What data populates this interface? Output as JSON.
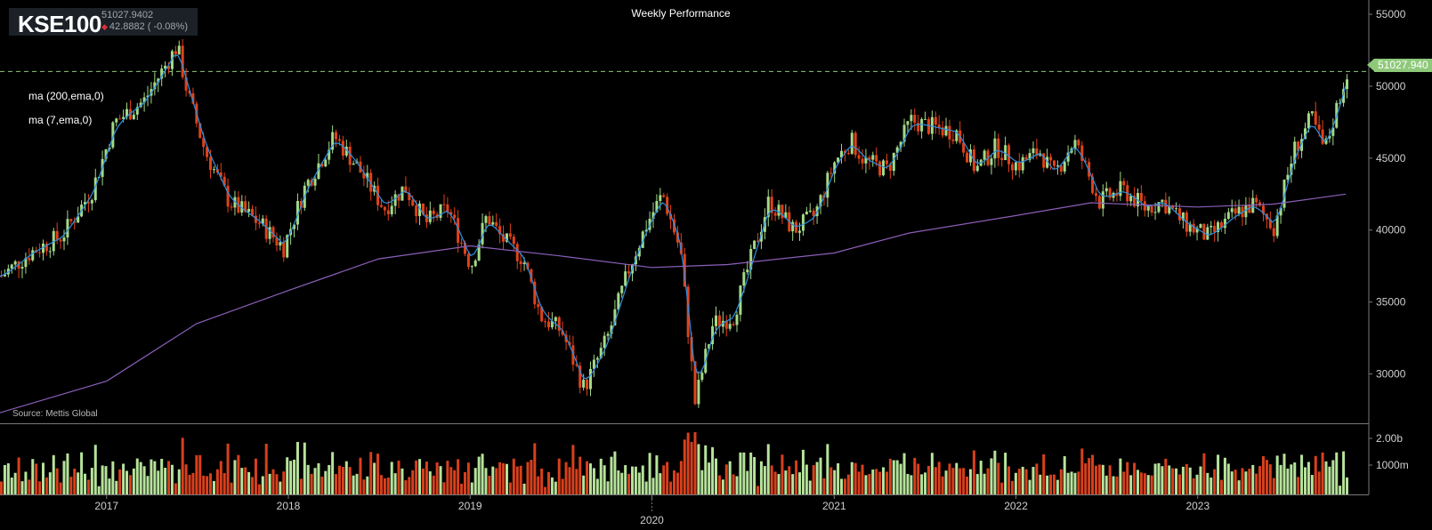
{
  "header": {
    "symbol": "KSE100",
    "price": "51027.9402",
    "change": "42.8882 ( -0.08%)"
  },
  "title": "Weekly Performance",
  "legend": [
    "ma (200,ema,0)",
    "ma (7,ema,0)"
  ],
  "source": "Source: Mettis Global",
  "last_price_label": "51027.940",
  "colors": {
    "up": "#a3d988",
    "down": "#e0421b",
    "ma200": "#8c5fb8",
    "ma7": "#2f8fe0",
    "vol_up": "#b6e39b",
    "vol_down": "#d8401c",
    "grid": "#555555"
  },
  "chart_data": {
    "type": "candlestick",
    "title": "Weekly Performance",
    "price_axis": {
      "min": 27000,
      "max": 55500,
      "ticks": [
        30000,
        35000,
        40000,
        45000,
        50000,
        55000
      ]
    },
    "volume_axis": {
      "ticks": [
        "1000m",
        "2.00b"
      ]
    },
    "x_ticks": [
      "2017",
      "2018",
      "2019",
      "2020",
      "2021",
      "2022",
      "2023"
    ],
    "x_range": [
      "2016-06-01",
      "2023-10-25"
    ],
    "last_price": 51027.9402,
    "close_series": [
      [
        "2016-06-01",
        36800
      ],
      [
        "2016-08-01",
        38500
      ],
      [
        "2016-10-01",
        39600
      ],
      [
        "2016-12-01",
        42800
      ],
      [
        "2017-01-15",
        47500
      ],
      [
        "2017-03-15",
        49000
      ],
      [
        "2017-05-20",
        52800
      ],
      [
        "2017-06-10",
        49500
      ],
      [
        "2017-07-15",
        45500
      ],
      [
        "2017-09-01",
        42000
      ],
      [
        "2017-11-01",
        40500
      ],
      [
        "2017-12-20",
        38800
      ],
      [
        "2018-02-01",
        43000
      ],
      [
        "2018-04-01",
        46500
      ],
      [
        "2018-05-15",
        44500
      ],
      [
        "2018-07-10",
        41500
      ],
      [
        "2018-08-20",
        43000
      ],
      [
        "2018-10-01",
        40500
      ],
      [
        "2018-11-15",
        41500
      ],
      [
        "2018-12-31",
        37500
      ],
      [
        "2019-02-01",
        41000
      ],
      [
        "2019-03-01",
        39500
      ],
      [
        "2019-04-15",
        38000
      ],
      [
        "2019-05-20",
        34000
      ],
      [
        "2019-07-01",
        33000
      ],
      [
        "2019-08-15",
        29000
      ],
      [
        "2019-10-01",
        32500
      ],
      [
        "2019-11-15",
        37500
      ],
      [
        "2019-12-20",
        40500
      ],
      [
        "2020-01-20",
        42500
      ],
      [
        "2020-02-25",
        38500
      ],
      [
        "2020-03-25",
        28000
      ],
      [
        "2020-04-30",
        33500
      ],
      [
        "2020-06-10",
        34000
      ],
      [
        "2020-07-15",
        38000
      ],
      [
        "2020-08-20",
        42000
      ],
      [
        "2020-10-10",
        40000
      ],
      [
        "2020-11-20",
        41000
      ],
      [
        "2020-12-31",
        44800
      ],
      [
        "2021-02-01",
        46200
      ],
      [
        "2021-03-01",
        44800
      ],
      [
        "2021-04-15",
        44200
      ],
      [
        "2021-06-01",
        47600
      ],
      [
        "2021-07-10",
        47200
      ],
      [
        "2021-09-01",
        46800
      ],
      [
        "2021-10-10",
        44200
      ],
      [
        "2021-11-20",
        45800
      ],
      [
        "2022-01-01",
        44500
      ],
      [
        "2022-02-15",
        45500
      ],
      [
        "2022-03-15",
        43800
      ],
      [
        "2022-04-25",
        46200
      ],
      [
        "2022-06-15",
        42000
      ],
      [
        "2022-08-01",
        42800
      ],
      [
        "2022-09-15",
        41500
      ],
      [
        "2022-10-20",
        42000
      ],
      [
        "2022-12-01",
        40500
      ],
      [
        "2023-01-20",
        39500
      ],
      [
        "2023-03-10",
        41000
      ],
      [
        "2023-04-20",
        41800
      ],
      [
        "2023-06-01",
        40200
      ],
      [
        "2023-07-10",
        45500
      ],
      [
        "2023-08-15",
        47800
      ],
      [
        "2023-09-10",
        45500
      ],
      [
        "2023-10-25",
        51028
      ]
    ],
    "ma200_series": [
      [
        "2016-06-01",
        27300
      ],
      [
        "2017-01-01",
        29500
      ],
      [
        "2017-07-01",
        33500
      ],
      [
        "2018-01-01",
        35800
      ],
      [
        "2018-07-01",
        38000
      ],
      [
        "2019-01-01",
        38900
      ],
      [
        "2019-07-01",
        38200
      ],
      [
        "2019-12-31",
        37400
      ],
      [
        "2020-06-01",
        37600
      ],
      [
        "2020-12-31",
        38400
      ],
      [
        "2021-06-01",
        39800
      ],
      [
        "2021-12-31",
        41000
      ],
      [
        "2022-06-01",
        41900
      ],
      [
        "2022-12-31",
        41600
      ],
      [
        "2023-06-01",
        41800
      ],
      [
        "2023-10-25",
        42500
      ]
    ]
  }
}
